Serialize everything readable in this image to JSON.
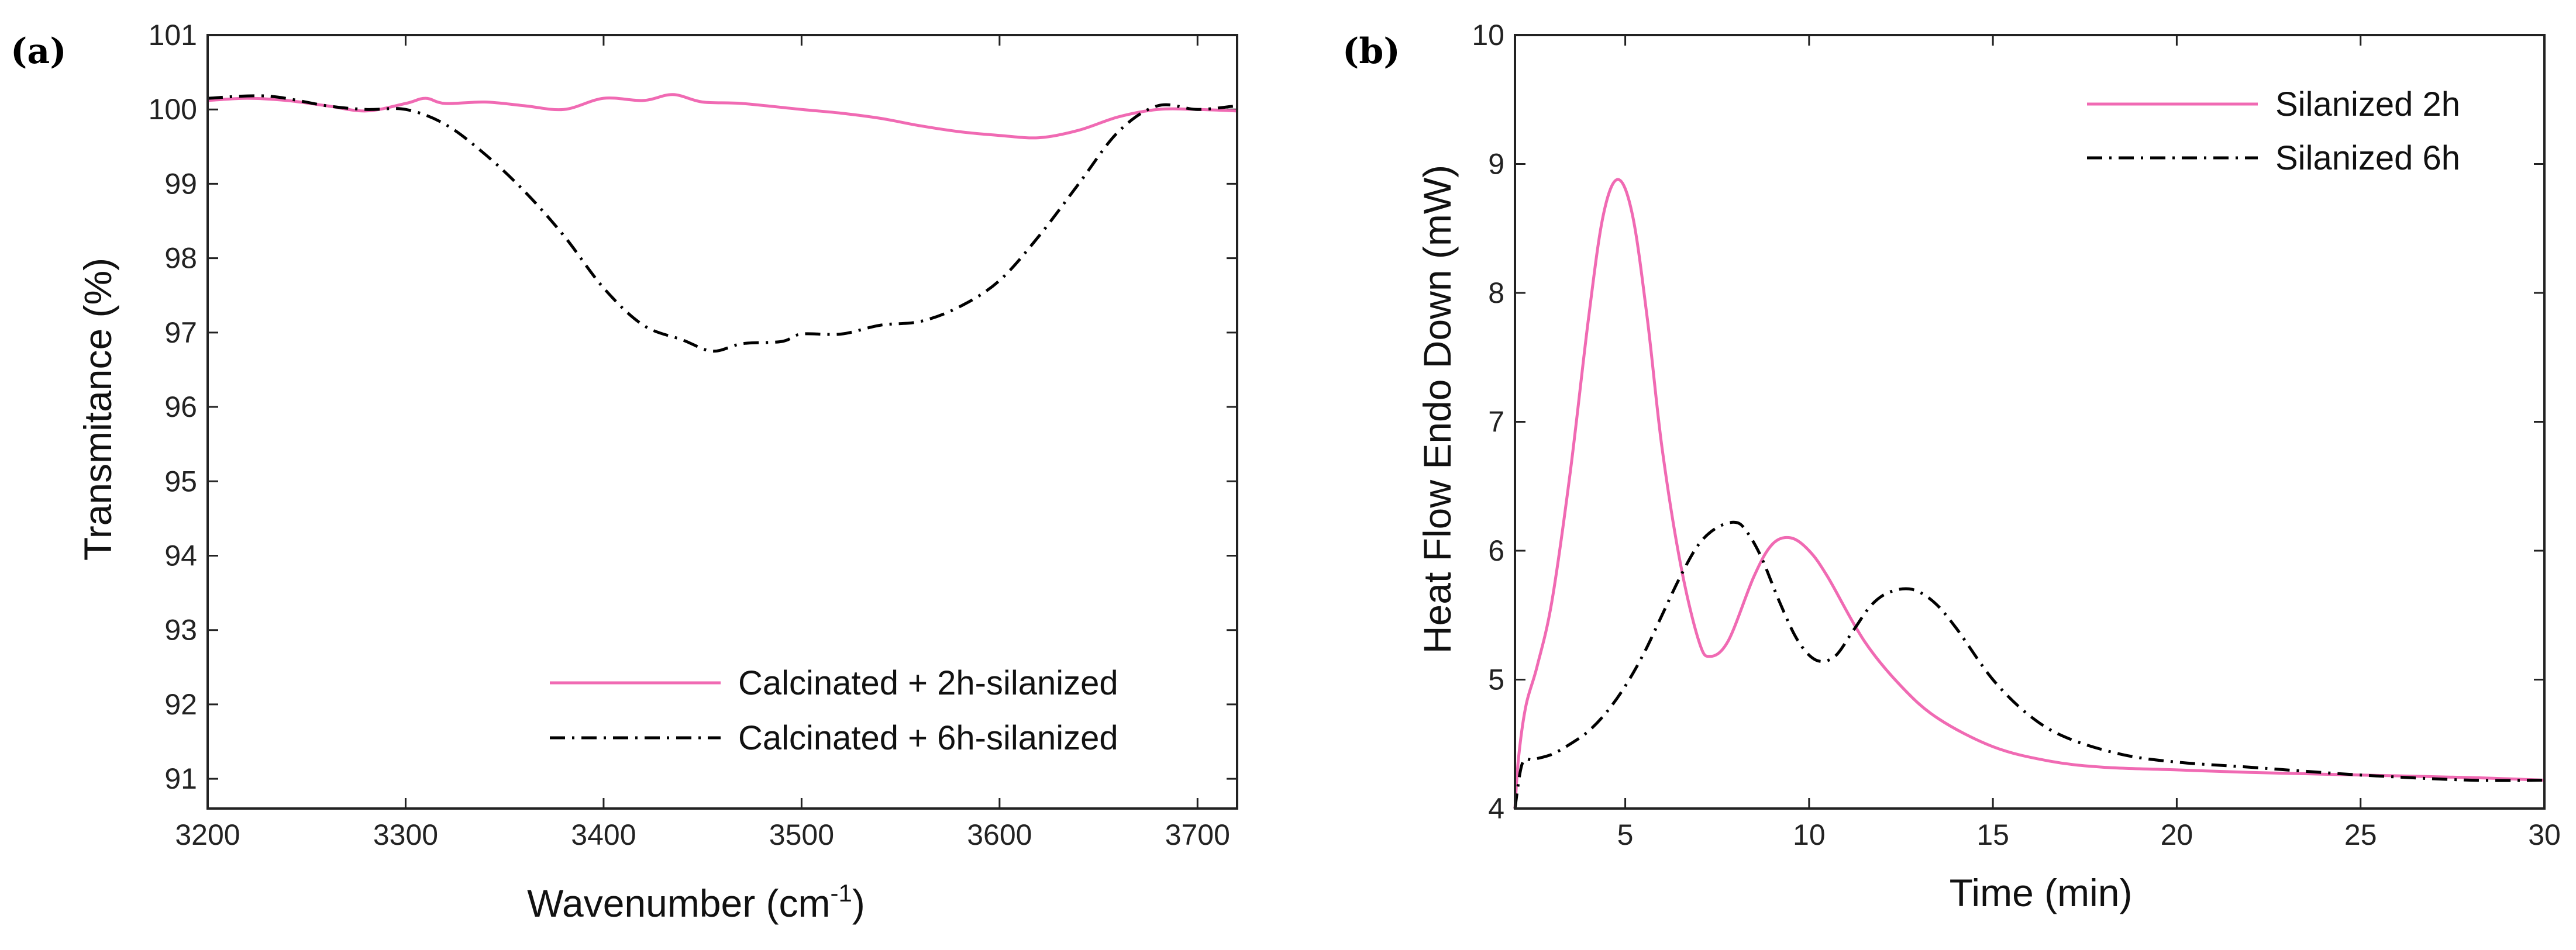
{
  "colors": {
    "pink": "#f06ab3",
    "black": "#000000"
  },
  "chart_data": [
    {
      "id": "a",
      "panel_label": "(a)",
      "type": "line",
      "xlabel": "Wavenumber (cm",
      "xlabel_sup": "-1",
      "xlabel_end": ")",
      "ylabel": "Transmitance (%)",
      "xlim": [
        3200,
        3720
      ],
      "ylim": [
        90.6,
        101
      ],
      "xticks": [
        3200,
        3300,
        3400,
        3500,
        3600,
        3700
      ],
      "yticks": [
        91,
        92,
        93,
        94,
        95,
        96,
        97,
        98,
        99,
        100,
        101
      ],
      "legend_position": "bottom-right",
      "series": [
        {
          "name": "Calcinated + 2h-silanized",
          "style": "solid",
          "x": [
            3200,
            3220,
            3240,
            3260,
            3280,
            3300,
            3310,
            3320,
            3340,
            3360,
            3380,
            3400,
            3420,
            3435,
            3450,
            3470,
            3500,
            3520,
            3540,
            3560,
            3580,
            3600,
            3620,
            3640,
            3660,
            3680,
            3700,
            3720
          ],
          "y": [
            100.12,
            100.15,
            100.12,
            100.05,
            99.98,
            100.08,
            100.15,
            100.08,
            100.1,
            100.05,
            100.0,
            100.15,
            100.12,
            100.2,
            100.1,
            100.08,
            100.0,
            99.95,
            99.88,
            99.78,
            99.7,
            99.65,
            99.62,
            99.72,
            99.9,
            100.0,
            100.0,
            99.98
          ]
        },
        {
          "name": "Calcinated + 6h-silanized",
          "style": "dashdot",
          "x": [
            3200,
            3230,
            3260,
            3280,
            3300,
            3320,
            3340,
            3360,
            3380,
            3400,
            3420,
            3440,
            3455,
            3470,
            3490,
            3500,
            3520,
            3540,
            3560,
            3580,
            3600,
            3620,
            3640,
            3660,
            3680,
            3700,
            3720
          ],
          "y": [
            100.15,
            100.18,
            100.05,
            100.0,
            100.0,
            99.8,
            99.4,
            98.9,
            98.3,
            97.6,
            97.1,
            96.9,
            96.75,
            96.85,
            96.88,
            96.98,
            96.98,
            97.1,
            97.15,
            97.35,
            97.7,
            98.3,
            99.0,
            99.7,
            100.05,
            100.0,
            100.05
          ]
        }
      ]
    },
    {
      "id": "b",
      "panel_label": "(b)",
      "type": "line",
      "xlabel": "Time (min)",
      "ylabel": "Heat Flow Endo Down (mW)",
      "xlim": [
        2,
        30
      ],
      "ylim": [
        4,
        10
      ],
      "xticks": [
        5,
        10,
        15,
        20,
        25,
        30
      ],
      "yticks": [
        4,
        5,
        6,
        7,
        8,
        9,
        10
      ],
      "legend_position": "top-right",
      "series": [
        {
          "name": "Silanized 2h",
          "style": "solid",
          "x": [
            2.0,
            2.1,
            2.3,
            2.6,
            3.0,
            3.5,
            4.0,
            4.4,
            4.8,
            5.2,
            5.6,
            6.0,
            6.5,
            7.0,
            7.3,
            7.8,
            8.5,
            9.0,
            9.5,
            10.0,
            10.5,
            11.5,
            12.5,
            13.5,
            15.0,
            16.5,
            18.0,
            20.0,
            22.0,
            25.0,
            28.0,
            30.0
          ],
          "y": [
            4.0,
            4.4,
            4.8,
            5.1,
            5.6,
            6.6,
            7.8,
            8.6,
            8.88,
            8.6,
            7.8,
            6.8,
            5.9,
            5.3,
            5.18,
            5.3,
            5.8,
            6.05,
            6.1,
            6.0,
            5.8,
            5.3,
            4.95,
            4.7,
            4.48,
            4.37,
            4.32,
            4.3,
            4.28,
            4.26,
            4.24,
            4.22
          ]
        },
        {
          "name": "Silanized 6h",
          "style": "dashdot",
          "x": [
            2.0,
            2.2,
            2.5,
            3.0,
            3.5,
            4.0,
            4.5,
            5.0,
            5.5,
            6.0,
            6.5,
            7.0,
            7.5,
            8.0,
            8.3,
            8.7,
            9.2,
            9.7,
            10.2,
            10.7,
            11.2,
            11.7,
            12.2,
            12.8,
            13.4,
            14.0,
            15.0,
            16.0,
            17.0,
            18.5,
            20.0,
            22.0,
            25.0,
            28.0,
            30.0
          ],
          "y": [
            4.0,
            4.35,
            4.38,
            4.42,
            4.5,
            4.6,
            4.75,
            4.95,
            5.2,
            5.5,
            5.8,
            6.05,
            6.18,
            6.22,
            6.15,
            5.95,
            5.6,
            5.3,
            5.15,
            5.18,
            5.38,
            5.58,
            5.68,
            5.7,
            5.6,
            5.4,
            5.0,
            4.72,
            4.55,
            4.42,
            4.36,
            4.32,
            4.26,
            4.22,
            4.22
          ]
        }
      ]
    }
  ]
}
